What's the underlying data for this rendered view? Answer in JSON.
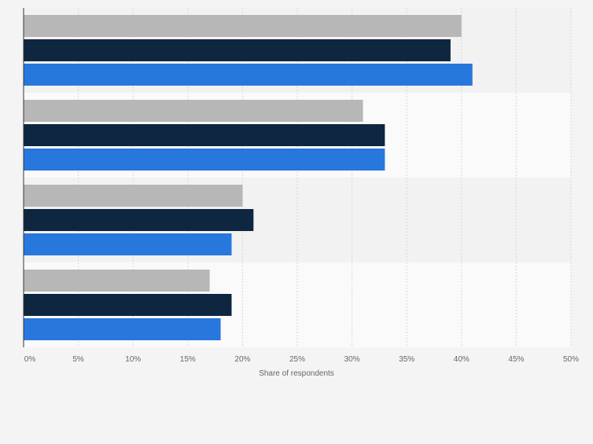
{
  "chart_data": {
    "type": "bar",
    "orientation": "horizontal",
    "title": "",
    "xlabel": "Share of respondents",
    "ylabel": "",
    "xlim": [
      0,
      50
    ],
    "x_ticks": [
      "0%",
      "5%",
      "10%",
      "15%",
      "20%",
      "25%",
      "30%",
      "35%",
      "40%",
      "45%",
      "50%"
    ],
    "grid": true,
    "category_count": 4,
    "series": [
      {
        "color": "#b7b7b7",
        "values": [
          40,
          31,
          20,
          17
        ]
      },
      {
        "color": "#0e2640",
        "values": [
          39,
          33,
          21,
          19
        ]
      },
      {
        "color": "#2877dd",
        "values": [
          41,
          33,
          19,
          18
        ]
      }
    ]
  }
}
